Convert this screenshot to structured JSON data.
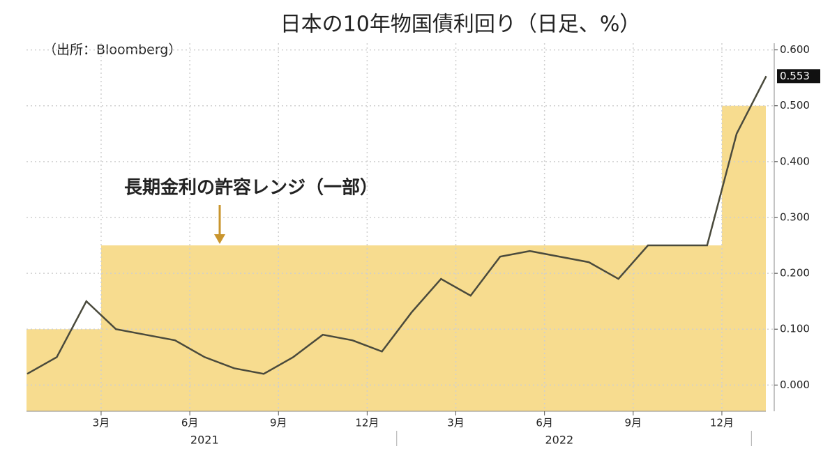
{
  "chart_data": {
    "type": "line",
    "title": "日本の10年物国債利回り（日足、%）",
    "source": "（出所：Bloomberg）",
    "annotation": "長期金利の許容レンジ（一部）",
    "x": [
      "2020-12",
      "2021-01",
      "2021-02",
      "2021-03",
      "2021-04",
      "2021-05",
      "2021-06",
      "2021-07",
      "2021-08",
      "2021-09",
      "2021-10",
      "2021-11",
      "2021-12",
      "2022-01",
      "2022-02",
      "2022-03",
      "2022-04",
      "2022-05",
      "2022-06",
      "2022-07",
      "2022-08",
      "2022-09",
      "2022-10",
      "2022-11",
      "2022-12",
      "2023-01"
    ],
    "series": [
      {
        "color": "#4a4a3c",
        "values": [
          0.02,
          0.05,
          0.15,
          0.1,
          0.09,
          0.08,
          0.05,
          0.03,
          0.02,
          0.05,
          0.09,
          0.08,
          0.06,
          0.13,
          0.19,
          0.16,
          0.23,
          0.24,
          0.23,
          0.22,
          0.19,
          0.25,
          0.25,
          0.25,
          0.45,
          0.553
        ]
      }
    ],
    "band": {
      "color": "#f7dc8f",
      "x": [
        "2020-12",
        "2021-03",
        "2022-12"
      ],
      "values": [
        0.1,
        0.25,
        0.5
      ]
    },
    "ylim": [
      -0.047,
      0.612
    ],
    "yticks": [
      {
        "value": 0,
        "label": "0.000"
      },
      {
        "value": 0.1,
        "label": "0.100"
      },
      {
        "value": 0.2,
        "label": "0.200"
      },
      {
        "value": 0.3,
        "label": "0.300"
      },
      {
        "value": 0.4,
        "label": "0.400"
      },
      {
        "value": 0.5,
        "label": "0.500"
      },
      {
        "value": 0.6,
        "label": "0.600"
      }
    ],
    "xticks": [
      {
        "value": "2021-03",
        "label": "3月"
      },
      {
        "value": "2021-06",
        "label": "6月"
      },
      {
        "value": "2021-09",
        "label": "9月"
      },
      {
        "value": "2021-12",
        "label": "12月"
      },
      {
        "value": "2022-03",
        "label": "3月"
      },
      {
        "value": "2022-06",
        "label": "6月"
      },
      {
        "value": "2022-09",
        "label": "9月"
      },
      {
        "value": "2022-12",
        "label": "12月"
      }
    ],
    "years": [
      "2021",
      "2022"
    ],
    "grid": true
  }
}
